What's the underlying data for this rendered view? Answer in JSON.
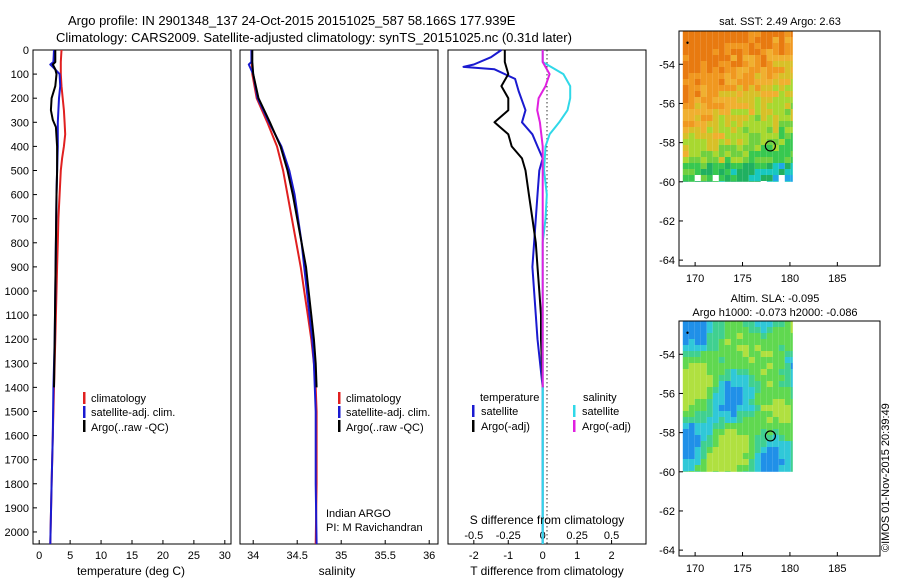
{
  "title_line1": "Argo profile: IN 2901348_137 24-Oct-2015 20151025_587 58.166S 177.939E",
  "title_line2": "Climatology: CARS2009. Satellite-adjusted climatology: synTS_20151025.nc (0.31d later)",
  "stamp": "©IMOS 01-Nov-2015 20:39:49",
  "colors": {
    "climatology": "#e02020",
    "satellite": "#1a1ad0",
    "argo": "#000000",
    "sat_salinity": "#30d8e8",
    "argo_salinity": "#e020e0"
  },
  "legend_tsal": [
    "climatology",
    "satellite-adj. clim.",
    "Argo(..raw -QC)"
  ],
  "legend_diff": {
    "temp_header": "temperature",
    "sal_header": "salinity",
    "satellite": "satellite",
    "argo": "Argo(-adj)"
  },
  "indian": [
    "Indian ARGO",
    "PI: M Ravichandran"
  ],
  "chart_data": [
    {
      "type": "line",
      "xlabel": "temperature (deg C)",
      "xlim": [
        -1,
        31
      ],
      "ylim": [
        2050,
        0
      ],
      "xticks": [
        0,
        5,
        10,
        15,
        20,
        25,
        30
      ],
      "yticks": [
        0,
        100,
        200,
        300,
        400,
        500,
        600,
        700,
        800,
        900,
        1000,
        1100,
        1200,
        1300,
        1400,
        1500,
        1600,
        1700,
        1800,
        1900,
        2000
      ],
      "series": [
        {
          "name": "climatology",
          "depth": [
            0,
            50,
            100,
            150,
            200,
            250,
            300,
            350,
            400,
            450,
            500,
            600,
            700,
            800,
            900,
            1000,
            1200,
            1400,
            1600,
            1800,
            2050
          ],
          "values": [
            3.6,
            3.5,
            3.5,
            3.6,
            3.8,
            4.0,
            4.1,
            4.2,
            4.0,
            3.7,
            3.5,
            3.3,
            3.1,
            3.0,
            2.9,
            2.8,
            2.6,
            2.4,
            2.2,
            2.0,
            1.8
          ]
        },
        {
          "name": "satellite-adj. clim.",
          "depth": [
            0,
            50,
            60,
            70,
            100,
            150,
            200,
            250,
            300,
            400,
            500,
            600,
            800,
            1000,
            1200,
            1400,
            1600,
            1800,
            2050
          ],
          "values": [
            2.4,
            2.3,
            1.8,
            2.2,
            3.3,
            3.4,
            3.2,
            3.1,
            3.0,
            3.0,
            2.9,
            2.8,
            2.7,
            2.6,
            2.5,
            2.3,
            2.2,
            2.0,
            1.8
          ]
        },
        {
          "name": "Argo(..raw -QC)",
          "depth": [
            0,
            50,
            60,
            80,
            100,
            150,
            200,
            250,
            290,
            320,
            400,
            500,
            600,
            800,
            1000,
            1200,
            1400
          ],
          "values": [
            2.6,
            2.6,
            2.2,
            2.6,
            2.8,
            2.6,
            2.0,
            1.9,
            2.2,
            2.7,
            2.9,
            2.9,
            2.8,
            2.7,
            2.6,
            2.5,
            2.4
          ]
        }
      ]
    },
    {
      "type": "line",
      "xlabel": "salinity",
      "xlim": [
        33.85,
        36.1
      ],
      "ylim": [
        2050,
        0
      ],
      "xticks": [
        34,
        34.5,
        35,
        35.5,
        36
      ],
      "series": [
        {
          "name": "climatology",
          "depth": [
            0,
            100,
            200,
            300,
            400,
            500,
            600,
            700,
            800,
            900,
            1000,
            1100,
            1200,
            1300,
            1400,
            1500,
            1600,
            1800,
            2050
          ],
          "values": [
            33.98,
            33.99,
            34.04,
            34.16,
            34.27,
            34.34,
            34.39,
            34.44,
            34.49,
            34.54,
            34.58,
            34.62,
            34.66,
            34.69,
            34.71,
            34.72,
            34.72,
            34.72,
            34.71
          ]
        },
        {
          "name": "satellite-adj. clim.",
          "depth": [
            0,
            50,
            60,
            100,
            200,
            300,
            400,
            500,
            600,
            700,
            800,
            900,
            1000,
            1100,
            1200,
            1300,
            1400,
            1500,
            1600,
            1800,
            2050
          ],
          "values": [
            33.98,
            33.98,
            33.95,
            34.0,
            34.05,
            34.18,
            34.32,
            34.41,
            34.47,
            34.51,
            34.55,
            34.58,
            34.61,
            34.64,
            34.67,
            34.69,
            34.7,
            34.71,
            34.71,
            34.71,
            34.72
          ]
        },
        {
          "name": "Argo(..raw -QC)",
          "depth": [
            0,
            50,
            100,
            200,
            300,
            400,
            500,
            600,
            700,
            800,
            900,
            1000,
            1100,
            1200,
            1300,
            1400
          ],
          "values": [
            33.99,
            33.99,
            34.0,
            34.06,
            34.19,
            34.31,
            34.39,
            34.45,
            34.5,
            34.55,
            34.6,
            34.63,
            34.66,
            34.69,
            34.71,
            34.72
          ]
        }
      ]
    },
    {
      "type": "line",
      "xlabel": "T difference from climatology",
      "xlabel_top": "S difference from climatology",
      "xlim": [
        -2.75,
        3.0
      ],
      "ylim": [
        2050,
        0
      ],
      "xticks": [
        -2,
        -1,
        0,
        1,
        2
      ],
      "xticks_top": [
        -0.5,
        -0.25,
        0,
        0.25,
        0.5
      ],
      "xticks_top_labels": [
        "-0.5",
        "-0.25",
        "0",
        "0.25",
        "0.5"
      ],
      "series": [
        {
          "name": "temperature satellite",
          "depth": [
            0,
            30,
            60,
            70,
            80,
            120,
            170,
            250,
            300,
            350,
            400,
            450,
            500,
            600,
            700,
            800,
            900,
            1000,
            1100,
            1200,
            1400,
            1700,
            2050
          ],
          "values": [
            -1.2,
            -1.5,
            -2.0,
            -2.3,
            -1.4,
            -0.8,
            -0.7,
            -0.5,
            -0.6,
            -0.3,
            -0.15,
            0,
            -0.1,
            -0.15,
            -0.2,
            -0.25,
            -0.3,
            -0.25,
            -0.2,
            -0.15,
            0,
            0,
            0
          ]
        },
        {
          "name": "temperature Argo(-adj)",
          "depth": [
            0,
            50,
            100,
            150,
            200,
            250,
            300,
            350,
            400,
            450,
            500,
            600,
            700,
            800,
            900,
            1000,
            1100,
            1200,
            1400
          ],
          "values": [
            -1.1,
            -1.1,
            -1.0,
            -1.2,
            -1.0,
            -1.0,
            -1.4,
            -1.0,
            -0.9,
            -0.6,
            -0.5,
            -0.4,
            -0.3,
            -0.2,
            -0.15,
            -0.1,
            -0.05,
            -0.05,
            0
          ]
        },
        {
          "name": "salinity satellite",
          "depth": [
            0,
            50,
            100,
            150,
            200,
            250,
            300,
            350,
            400,
            500,
            600,
            700,
            800,
            900,
            1000,
            1100,
            1200,
            1400,
            1700,
            2050
          ],
          "values": [
            0.0,
            0.0,
            0.15,
            0.2,
            0.2,
            0.18,
            0.12,
            0.05,
            0.02,
            0.01,
            0.03,
            0.02,
            0.0,
            0.0,
            0.0,
            0.0,
            0.0,
            0.0,
            0.0,
            0.0
          ]
        },
        {
          "name": "salinity Argo(-adj)",
          "depth": [
            0,
            50,
            100,
            150,
            200,
            250,
            300,
            350,
            400,
            500,
            600,
            700,
            800,
            900,
            1000,
            1200,
            1400
          ],
          "values": [
            0.0,
            0.0,
            0.05,
            0.02,
            -0.03,
            -0.04,
            -0.02,
            -0.01,
            0.0,
            0.0,
            0.0,
            0.0,
            0.0,
            0.0,
            0.0,
            0.0,
            0.0
          ]
        }
      ]
    },
    {
      "type": "heatmap",
      "title": "sat. SST: 2.49  Argo: 2.63",
      "xlim": [
        168.3,
        189.5
      ],
      "ylim": [
        -64.3,
        -52.3
      ],
      "xticks": [
        170,
        175,
        180,
        185
      ],
      "yticks": [
        -54,
        -56,
        -58,
        -60,
        -62,
        -64
      ],
      "field_extent": {
        "lon": [
          168.7,
          180.3
        ],
        "lat": [
          -60.0,
          -52.3
        ]
      },
      "marker": {
        "lon": 177.94,
        "lat": -58.17
      }
    },
    {
      "type": "heatmap",
      "title_lines": [
        "Altim. SLA: -0.095",
        "Argo h1000: -0.073  h2000: -0.086"
      ],
      "xlim": [
        168.3,
        189.5
      ],
      "ylim": [
        -64.3,
        -52.3
      ],
      "xticks": [
        170,
        175,
        180,
        185
      ],
      "yticks": [
        -54,
        -56,
        -58,
        -60,
        -62,
        -64
      ],
      "field_extent": {
        "lon": [
          168.7,
          180.3
        ],
        "lat": [
          -60.0,
          -52.3
        ]
      },
      "marker": {
        "lon": 177.94,
        "lat": -58.17
      }
    }
  ]
}
